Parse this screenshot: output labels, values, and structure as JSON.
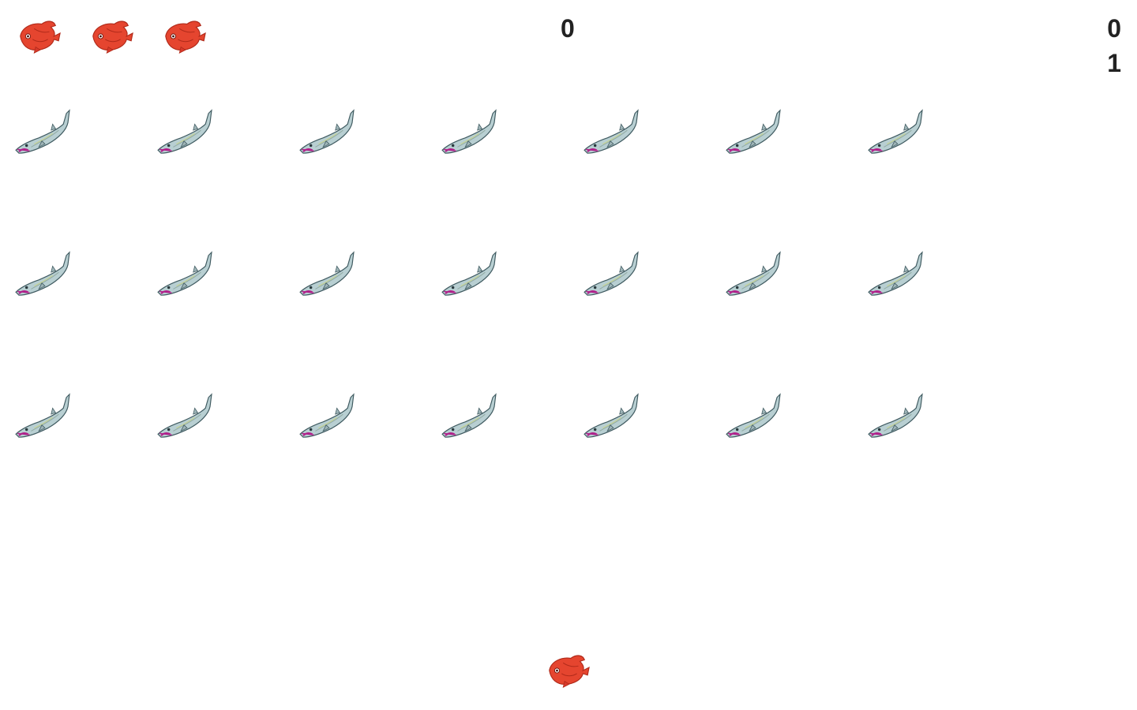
{
  "hud": {
    "score": "0",
    "hiscore": "0",
    "level": "1",
    "lives": 3
  },
  "enemies": {
    "rows": 3,
    "cols": 7,
    "icon": "barracuda-icon"
  },
  "player": {
    "icon": "red-fish-icon"
  },
  "colors": {
    "background": "#ffffff",
    "player_fish": "#e5452f",
    "enemy_fish_body": "#b8cfd2",
    "enemy_fish_mouth": "#b0208a",
    "text": "#222222"
  }
}
